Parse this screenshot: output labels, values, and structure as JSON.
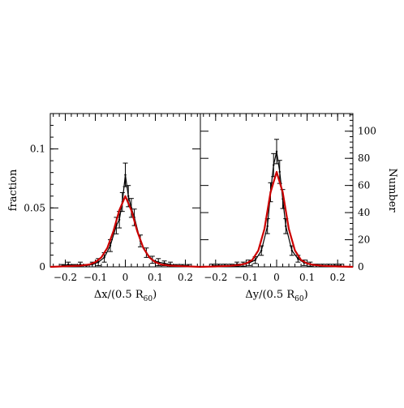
{
  "chart_data": [
    {
      "type": "line",
      "xlabel_main": "Δx/(0.5 R",
      "xlabel_sub": "60",
      "xlabel_close": ")",
      "ylabel": "fraction",
      "xlim": [
        -0.25,
        0.25
      ],
      "ylim": [
        0,
        0.13
      ],
      "x_ticks": [
        -0.2,
        -0.1,
        0,
        0.1,
        0.2
      ],
      "x_tick_labels": [
        "−0.2",
        "−0.1",
        "0",
        "0.1",
        "0.2"
      ],
      "y_ticks": [
        0,
        0.05,
        0.1
      ],
      "y_tick_labels": [
        "0",
        "0.05",
        "0.1"
      ],
      "series": [
        {
          "kind": "histogram",
          "color": "#000000",
          "x": [
            -0.21,
            -0.19,
            -0.17,
            -0.15,
            -0.13,
            -0.11,
            -0.09,
            -0.07,
            -0.05,
            -0.03,
            -0.02,
            -0.01,
            0.0,
            0.01,
            0.02,
            0.03,
            0.05,
            0.07,
            0.09,
            0.11,
            0.13,
            0.15,
            0.17,
            0.19,
            0.21
          ],
          "y": [
            0.001,
            0.002,
            0.001,
            0.002,
            0.001,
            0.002,
            0.004,
            0.008,
            0.018,
            0.035,
            0.04,
            0.055,
            0.078,
            0.06,
            0.05,
            0.042,
            0.022,
            0.012,
            0.006,
            0.004,
            0.003,
            0.002,
            0.001,
            0.001,
            0.001
          ],
          "err": [
            0.001,
            0.002,
            0.001,
            0.002,
            0.001,
            0.002,
            0.003,
            0.004,
            0.005,
            0.007,
            0.007,
            0.008,
            0.01,
            0.009,
            0.008,
            0.007,
            0.005,
            0.004,
            0.003,
            0.003,
            0.002,
            0.002,
            0.001,
            0.001,
            0.001
          ]
        },
        {
          "kind": "fit",
          "color": "#cc0000",
          "x": [
            -0.25,
            -0.2,
            -0.15,
            -0.12,
            -0.1,
            -0.08,
            -0.06,
            -0.04,
            -0.02,
            0.0,
            0.02,
            0.04,
            0.06,
            0.08,
            0.1,
            0.12,
            0.15,
            0.2,
            0.25
          ],
          "y": [
            0.0,
            0.0005,
            0.001,
            0.002,
            0.004,
            0.008,
            0.016,
            0.03,
            0.048,
            0.06,
            0.048,
            0.03,
            0.016,
            0.008,
            0.004,
            0.002,
            0.001,
            0.0005,
            0.0
          ]
        }
      ]
    },
    {
      "type": "line",
      "xlabel_main": "Δy/(0.5 R",
      "xlabel_sub": "60",
      "xlabel_close": ")",
      "ylabel": "Number",
      "xlim": [
        -0.25,
        0.25
      ],
      "ylim": [
        0,
        113
      ],
      "x_ticks": [
        -0.2,
        -0.1,
        0,
        0.1,
        0.2
      ],
      "x_tick_labels": [
        "−0.2",
        "−0.1",
        "0",
        "0.1",
        "0.2"
      ],
      "y_ticks": [
        0,
        20,
        40,
        60,
        80,
        100
      ],
      "y_tick_labels": [
        "0",
        "20",
        "40",
        "60",
        "80",
        "100"
      ],
      "series": [
        {
          "kind": "histogram",
          "color": "#000000",
          "x": [
            -0.21,
            -0.19,
            -0.17,
            -0.15,
            -0.13,
            -0.11,
            -0.09,
            -0.07,
            -0.05,
            -0.03,
            -0.02,
            -0.01,
            0.0,
            0.01,
            0.02,
            0.03,
            0.05,
            0.07,
            0.09,
            0.11,
            0.13,
            0.15,
            0.17,
            0.19,
            0.21
          ],
          "y": [
            1,
            1,
            1,
            1,
            2,
            2,
            3,
            5,
            12,
            30,
            55,
            75,
            85,
            70,
            50,
            30,
            12,
            6,
            3,
            2,
            1,
            1,
            1,
            1,
            1
          ],
          "err": [
            1,
            1,
            1,
            1,
            1.5,
            1.5,
            2,
            2.5,
            3.5,
            5.5,
            7,
            8.5,
            9,
            8.5,
            7,
            5.5,
            3.5,
            2.5,
            2,
            1.5,
            1,
            1,
            1,
            1,
            1
          ]
        },
        {
          "kind": "fit",
          "color": "#cc0000",
          "x": [
            -0.25,
            -0.2,
            -0.15,
            -0.12,
            -0.1,
            -0.08,
            -0.06,
            -0.04,
            -0.02,
            0.0,
            0.02,
            0.04,
            0.06,
            0.08,
            0.1,
            0.12,
            0.15,
            0.2,
            0.25
          ],
          "y": [
            0,
            0.3,
            0.8,
            1.5,
            2.5,
            5,
            12,
            28,
            55,
            70,
            55,
            28,
            12,
            5,
            2.5,
            1.5,
            0.8,
            0.3,
            0
          ]
        }
      ]
    }
  ]
}
